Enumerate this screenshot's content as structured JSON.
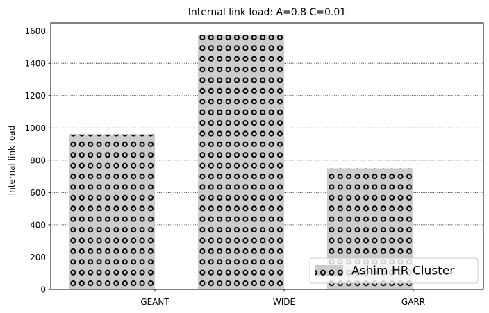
{
  "chart_data": {
    "type": "bar",
    "title": "Internal link load: A=0.8 C=0.01",
    "xlabel": "",
    "ylabel": "Internal link load",
    "categories": [
      "GEANT",
      "WIDE",
      "GARR"
    ],
    "series": [
      {
        "name": "Ashim HR Cluster",
        "values": [
          960,
          1575,
          750
        ]
      }
    ],
    "ylim": [
      0,
      1650
    ],
    "yticks": [
      0,
      200,
      400,
      600,
      800,
      1000,
      1200,
      1400,
      1600
    ],
    "grid": "horizontal dotted",
    "legend": "lower right",
    "bar_color": "#cccccc",
    "hatch": "circles",
    "hatch_color": "#000000"
  }
}
